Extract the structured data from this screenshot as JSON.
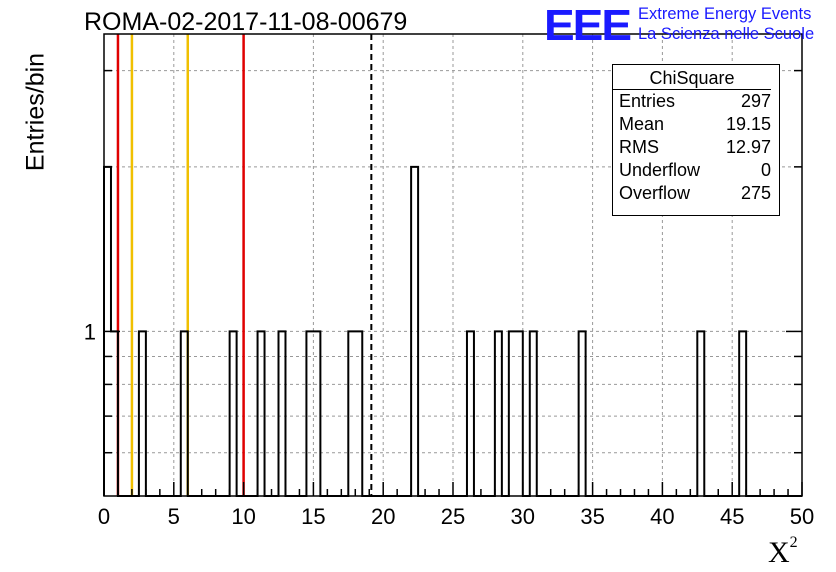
{
  "header": {
    "title": "ROMA-02-2017-11-08-00679"
  },
  "logo": {
    "mark": "EEE",
    "line1": "Extreme Energy Events",
    "line2": "La Scienza nelle Scuole",
    "color": "#1a1aff"
  },
  "stats": {
    "name": "ChiSquare",
    "rows": [
      {
        "label": "Entries",
        "value": "297"
      },
      {
        "label": "Mean",
        "value": "19.15"
      },
      {
        "label": "RMS",
        "value": "12.97"
      },
      {
        "label": "Underflow",
        "value": "0"
      },
      {
        "label": "Overflow",
        "value": "275"
      }
    ]
  },
  "chart_data": {
    "type": "bar",
    "title": "ROMA-02-2017-11-08-00679",
    "xlabel": "X",
    "xlabel_sup": "2",
    "ylabel": "Entries/bin",
    "xlim": [
      0,
      50
    ],
    "ylim": [
      0.5,
      3.5
    ],
    "log_y": true,
    "grid": true,
    "bin_width": 0.5,
    "x_ticks": [
      0,
      5,
      10,
      15,
      20,
      25,
      30,
      35,
      40,
      45,
      50
    ],
    "y_tick_labels": [
      {
        "value": 1,
        "label": "1"
      }
    ],
    "bins": [
      {
        "x": 0.0,
        "y": 2
      },
      {
        "x": 0.5,
        "y": 1
      },
      {
        "x": 2.5,
        "y": 1
      },
      {
        "x": 5.5,
        "y": 1
      },
      {
        "x": 9.0,
        "y": 1
      },
      {
        "x": 11.0,
        "y": 1
      },
      {
        "x": 12.5,
        "y": 1
      },
      {
        "x": 14.5,
        "y": 1
      },
      {
        "x": 15.0,
        "y": 1
      },
      {
        "x": 17.5,
        "y": 1
      },
      {
        "x": 18.0,
        "y": 1
      },
      {
        "x": 22.0,
        "y": 2
      },
      {
        "x": 26.0,
        "y": 1
      },
      {
        "x": 28.0,
        "y": 1
      },
      {
        "x": 29.0,
        "y": 1
      },
      {
        "x": 29.5,
        "y": 1
      },
      {
        "x": 30.5,
        "y": 1
      },
      {
        "x": 34.0,
        "y": 1
      },
      {
        "x": 42.5,
        "y": 1
      },
      {
        "x": 45.5,
        "y": 1
      }
    ],
    "vlines": [
      {
        "x": 1.0,
        "color": "#e00000",
        "style": "solid"
      },
      {
        "x": 2.0,
        "color": "#f0c000",
        "style": "solid"
      },
      {
        "x": 6.0,
        "color": "#f0c000",
        "style": "solid"
      },
      {
        "x": 10.0,
        "color": "#e00000",
        "style": "solid"
      },
      {
        "x": 19.15,
        "color": "#000000",
        "style": "dashed"
      }
    ]
  }
}
